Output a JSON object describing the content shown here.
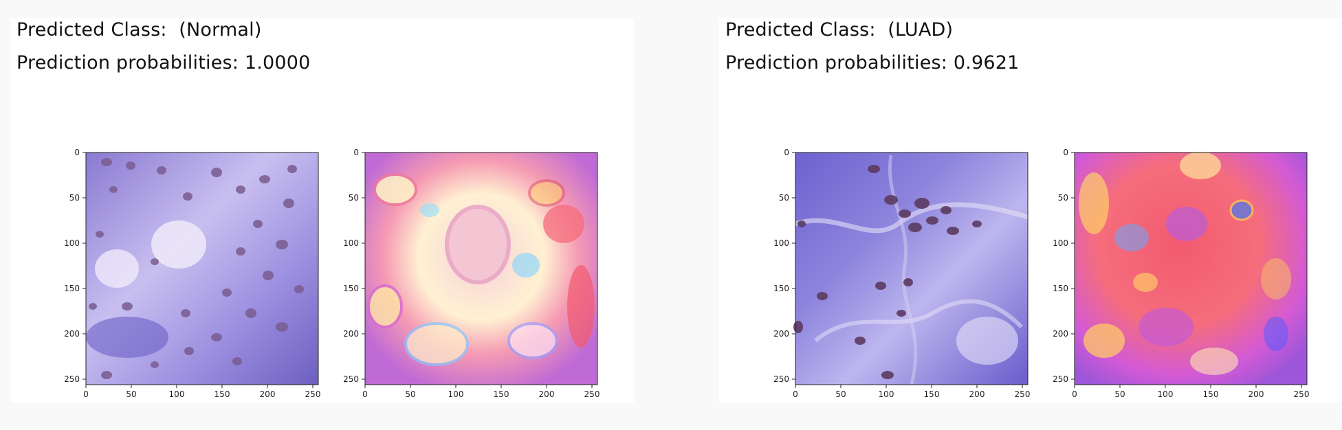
{
  "panels": [
    {
      "predicted_class_text": "Predicted Class:  (Normal)",
      "probability_text": "Prediction probabilities: 1.0000",
      "images": [
        {
          "kind": "tissue",
          "description_icon": "histology-image",
          "palette": [
            "#8e7fd6",
            "#b6a9e4",
            "#d8d1f2",
            "#7a5d93"
          ]
        },
        {
          "kind": "heatmap",
          "description_icon": "saliency-heatmap",
          "palette": [
            "#f3c8e6",
            "#f46d6d",
            "#ffd966",
            "#7fd3ff"
          ]
        }
      ]
    },
    {
      "predicted_class_text": "Predicted Class:  (LUAD)",
      "probability_text": "Prediction probabilities: 0.9621",
      "images": [
        {
          "kind": "tissue",
          "description_icon": "histology-image",
          "palette": [
            "#6f63cf",
            "#8f85dc",
            "#d9d4f2",
            "#5a3a5e"
          ]
        },
        {
          "kind": "heatmap",
          "description_icon": "saliency-heatmap",
          "palette": [
            "#f05a6d",
            "#c35ad9",
            "#ffd966",
            "#6aa7ff"
          ]
        }
      ]
    }
  ],
  "axis": {
    "y_ticks": [
      "0",
      "50",
      "100",
      "150",
      "200",
      "250"
    ],
    "x_ticks": [
      "0",
      "50",
      "100",
      "150",
      "200",
      "250"
    ]
  }
}
